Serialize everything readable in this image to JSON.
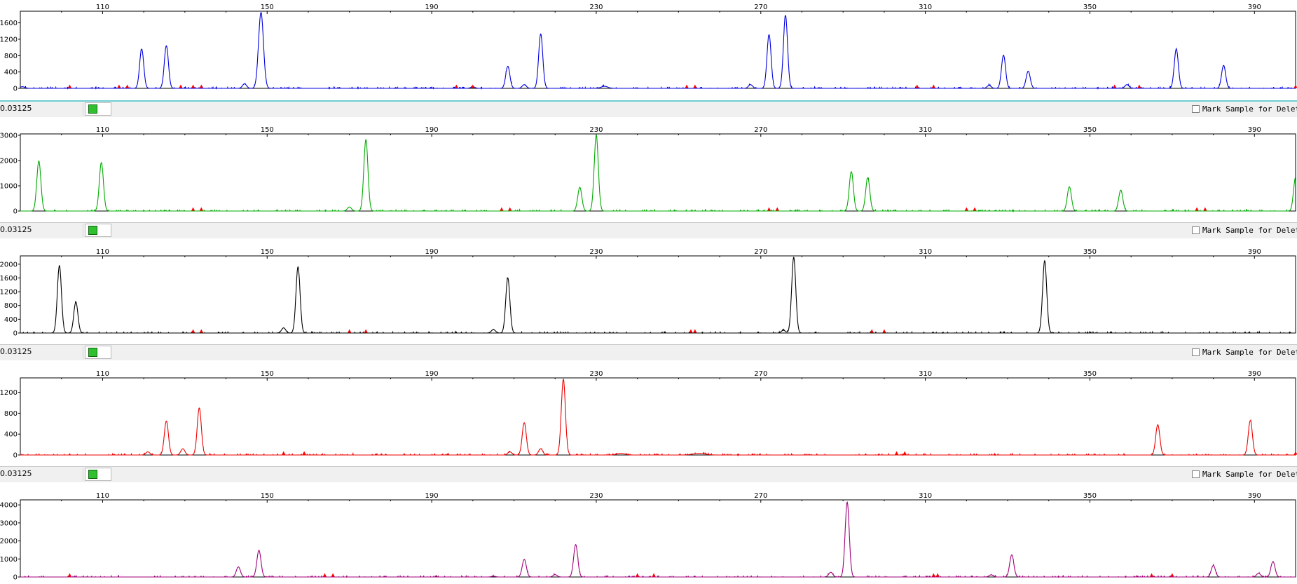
{
  "x_ticks": [
    110,
    150,
    190,
    230,
    270,
    310,
    350,
    390
  ],
  "x_range": [
    90,
    400
  ],
  "threshold_label": "0.03125",
  "mark_sample_label": "Mark Sample for Deleti",
  "chart_data": [
    {
      "type": "line",
      "color": "#0000dd",
      "ylim": [
        0,
        1850
      ],
      "y_ticks": [
        0,
        400,
        800,
        1200,
        1600
      ],
      "peaks": [
        {
          "x": 90.5,
          "h": 40,
          "w": 0.6
        },
        {
          "x": 119.5,
          "h": 960,
          "w": 0.5
        },
        {
          "x": 125.5,
          "h": 1040,
          "w": 0.5
        },
        {
          "x": 144.5,
          "h": 110,
          "w": 0.5
        },
        {
          "x": 148.5,
          "h": 1850,
          "w": 0.6
        },
        {
          "x": 200.0,
          "h": 40,
          "w": 0.5
        },
        {
          "x": 208.5,
          "h": 540,
          "w": 0.5
        },
        {
          "x": 212.5,
          "h": 90,
          "w": 0.5
        },
        {
          "x": 216.5,
          "h": 1330,
          "w": 0.5
        },
        {
          "x": 232.0,
          "h": 50,
          "w": 0.8
        },
        {
          "x": 267.5,
          "h": 90,
          "w": 0.5
        },
        {
          "x": 272.0,
          "h": 1310,
          "w": 0.5
        },
        {
          "x": 276.0,
          "h": 1780,
          "w": 0.5
        },
        {
          "x": 325.5,
          "h": 70,
          "w": 0.5
        },
        {
          "x": 329.0,
          "h": 810,
          "w": 0.5
        },
        {
          "x": 335.0,
          "h": 420,
          "w": 0.5
        },
        {
          "x": 359.0,
          "h": 90,
          "w": 0.5
        },
        {
          "x": 371.0,
          "h": 960,
          "w": 0.5
        },
        {
          "x": 382.5,
          "h": 560,
          "w": 0.5
        }
      ],
      "markers": [
        102,
        114,
        116,
        129,
        132,
        134,
        196,
        200,
        252,
        254,
        308,
        312,
        356,
        362,
        400
      ]
    },
    {
      "type": "line",
      "color": "#00aa00",
      "ylim": [
        0,
        3000
      ],
      "y_ticks": [
        0,
        1000,
        2000,
        3000
      ],
      "peaks": [
        {
          "x": 94.5,
          "h": 1980,
          "w": 0.5
        },
        {
          "x": 109.7,
          "h": 1920,
          "w": 0.5
        },
        {
          "x": 170.0,
          "h": 160,
          "w": 0.5
        },
        {
          "x": 174.0,
          "h": 2830,
          "w": 0.5
        },
        {
          "x": 226.0,
          "h": 940,
          "w": 0.5
        },
        {
          "x": 230.0,
          "h": 3000,
          "w": 0.5
        },
        {
          "x": 292.0,
          "h": 1560,
          "w": 0.5
        },
        {
          "x": 296.0,
          "h": 1320,
          "w": 0.5
        },
        {
          "x": 345.0,
          "h": 960,
          "w": 0.5
        },
        {
          "x": 357.5,
          "h": 830,
          "w": 0.5
        },
        {
          "x": 400.0,
          "h": 1340,
          "w": 0.5
        }
      ],
      "markers": [
        132,
        134,
        207,
        209,
        272,
        274,
        320,
        322,
        376,
        378
      ]
    },
    {
      "type": "line",
      "color": "#000000",
      "ylim": [
        0,
        2200
      ],
      "y_ticks": [
        0,
        400,
        800,
        1200,
        1600,
        2000
      ],
      "peaks": [
        {
          "x": 99.5,
          "h": 1960,
          "w": 0.5
        },
        {
          "x": 103.5,
          "h": 900,
          "w": 0.5
        },
        {
          "x": 154.0,
          "h": 150,
          "w": 0.5
        },
        {
          "x": 157.5,
          "h": 1920,
          "w": 0.5
        },
        {
          "x": 205.0,
          "h": 100,
          "w": 0.5
        },
        {
          "x": 208.5,
          "h": 1600,
          "w": 0.5
        },
        {
          "x": 275.5,
          "h": 80,
          "w": 0.5
        },
        {
          "x": 278.0,
          "h": 2200,
          "w": 0.5
        },
        {
          "x": 339.0,
          "h": 2100,
          "w": 0.5
        }
      ],
      "markers": [
        132,
        134,
        170,
        174,
        253,
        254,
        297,
        300
      ]
    },
    {
      "type": "line",
      "color": "#ee0000",
      "ylim": [
        0,
        1450
      ],
      "y_ticks": [
        0,
        400,
        800,
        1200
      ],
      "peaks": [
        {
          "x": 121.0,
          "h": 60,
          "w": 0.5
        },
        {
          "x": 125.5,
          "h": 650,
          "w": 0.5
        },
        {
          "x": 129.5,
          "h": 120,
          "w": 0.5
        },
        {
          "x": 133.5,
          "h": 900,
          "w": 0.5
        },
        {
          "x": 209.0,
          "h": 60,
          "w": 0.5
        },
        {
          "x": 212.5,
          "h": 620,
          "w": 0.5
        },
        {
          "x": 216.5,
          "h": 120,
          "w": 0.5
        },
        {
          "x": 222.0,
          "h": 1450,
          "w": 0.5
        },
        {
          "x": 236.0,
          "h": 30,
          "w": 1.0
        },
        {
          "x": 255.0,
          "h": 30,
          "w": 1.5
        },
        {
          "x": 366.5,
          "h": 580,
          "w": 0.5
        },
        {
          "x": 389.0,
          "h": 660,
          "w": 0.5
        }
      ],
      "markers": [
        154,
        159,
        303,
        305,
        400
      ]
    },
    {
      "type": "line",
      "color": "#a0007a",
      "ylim": [
        0,
        4200
      ],
      "y_ticks": [
        0,
        1000,
        2000,
        3000,
        4000
      ],
      "peaks": [
        {
          "x": 143.0,
          "h": 560,
          "w": 0.5
        },
        {
          "x": 148.0,
          "h": 1480,
          "w": 0.5
        },
        {
          "x": 205.0,
          "h": 40,
          "w": 0.5
        },
        {
          "x": 212.5,
          "h": 980,
          "w": 0.5
        },
        {
          "x": 220.0,
          "h": 130,
          "w": 0.5
        },
        {
          "x": 225.0,
          "h": 1800,
          "w": 0.5
        },
        {
          "x": 287.0,
          "h": 260,
          "w": 0.5
        },
        {
          "x": 291.0,
          "h": 4150,
          "w": 0.5
        },
        {
          "x": 326.0,
          "h": 120,
          "w": 0.5
        },
        {
          "x": 331.0,
          "h": 1230,
          "w": 0.5
        },
        {
          "x": 380.0,
          "h": 640,
          "w": 0.5
        },
        {
          "x": 391.0,
          "h": 200,
          "w": 0.5
        },
        {
          "x": 394.5,
          "h": 860,
          "w": 0.5
        }
      ],
      "markers": [
        102,
        164,
        166,
        240,
        244,
        312,
        313,
        365,
        370
      ]
    }
  ]
}
